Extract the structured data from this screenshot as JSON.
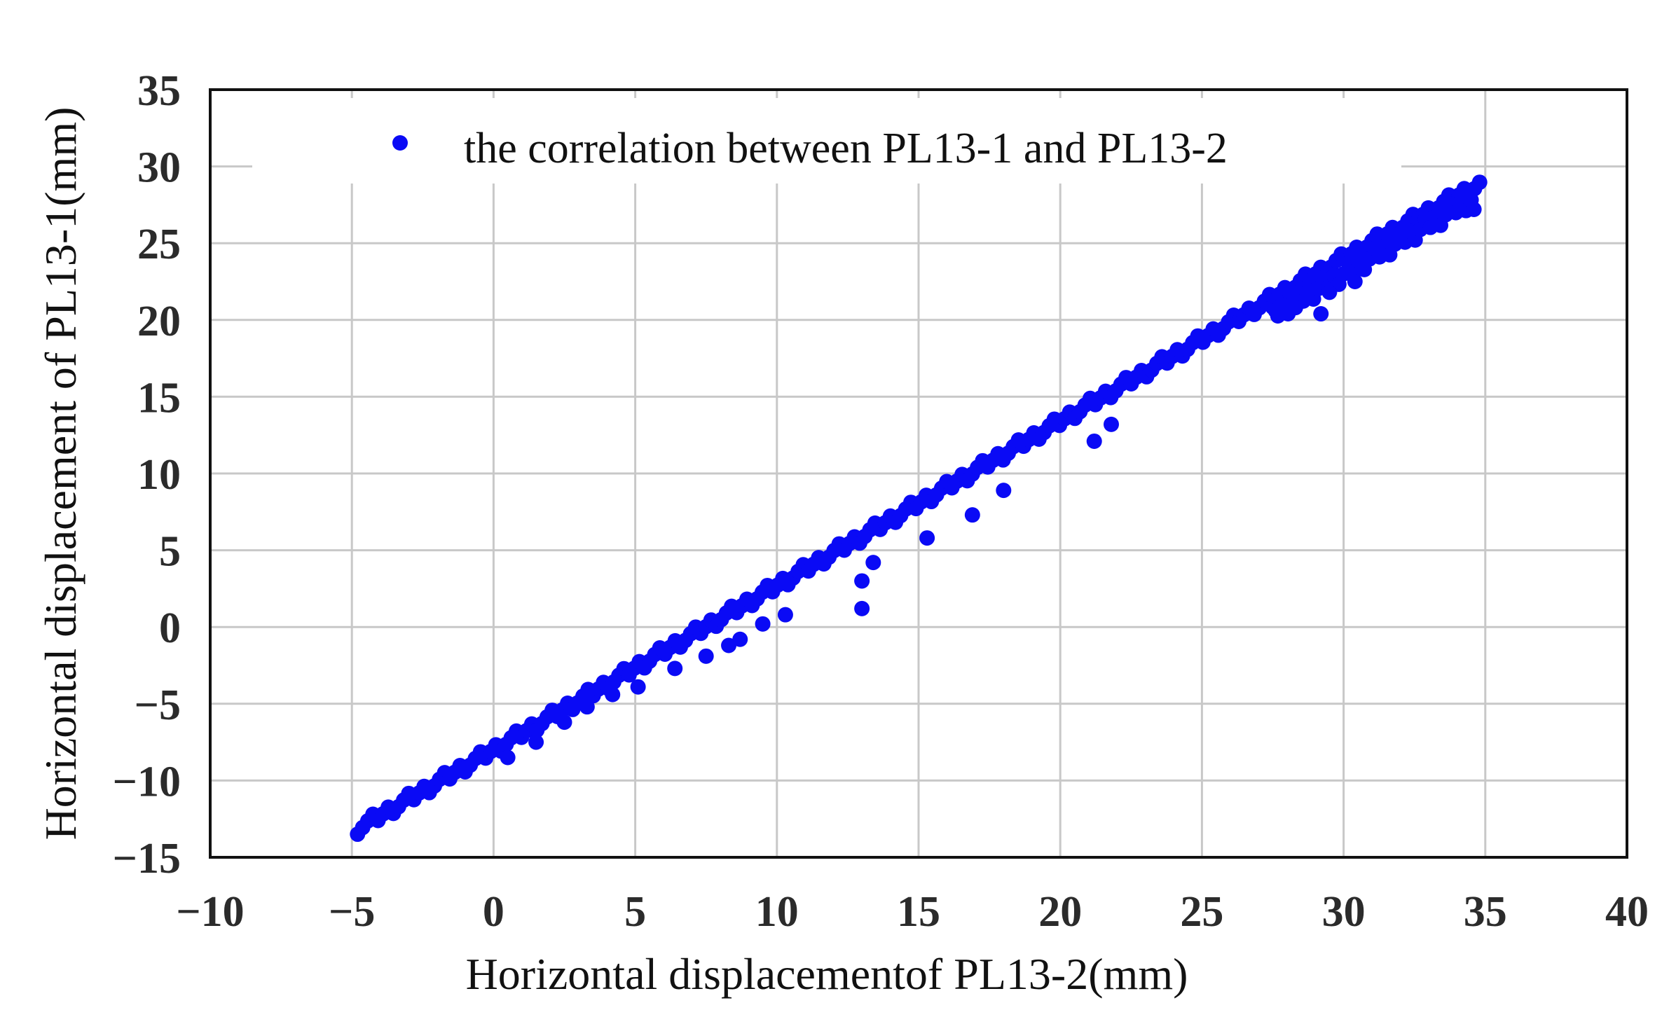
{
  "colors": {
    "points": "#0a0af5",
    "grid": "#c8c8c8",
    "frame": "#111111"
  },
  "chart_data": {
    "type": "scatter",
    "xlabel": "Horizontal displacementof PL13-2(mm)",
    "ylabel": "Horizontal displacement of PL13-1(mm)",
    "xlim": [
      -10,
      40
    ],
    "ylim": [
      -15,
      35
    ],
    "xticks": [
      -10,
      -5,
      0,
      5,
      10,
      15,
      20,
      25,
      30,
      35,
      40
    ],
    "yticks": [
      -15,
      -10,
      -5,
      0,
      5,
      10,
      15,
      20,
      25,
      30,
      35
    ],
    "xtick_labels": [
      "−10",
      "−5",
      "0",
      "5",
      "10",
      "15",
      "20",
      "25",
      "30",
      "35",
      "40"
    ],
    "ytick_labels": [
      "−15",
      "−10",
      "−5",
      "0",
      "5",
      "10",
      "15",
      "20",
      "25",
      "30",
      "35"
    ],
    "grid": true,
    "legend": {
      "position": "top",
      "entries": [
        "the correlation between PL13-1 and PL13-2"
      ]
    },
    "series": [
      {
        "name": "the correlation between PL13-1 and PL13-2",
        "trend": {
          "x0": -4.8,
          "x1": 34.8,
          "y_intercept": -8.0,
          "slope": 1.07
        },
        "main_points": 220,
        "outliers": [
          [
            -1.0,
            -9.2
          ],
          [
            0.5,
            -8.5
          ],
          [
            1.5,
            -7.5
          ],
          [
            2.5,
            -6.2
          ],
          [
            3.3,
            -5.2
          ],
          [
            4.2,
            -4.4
          ],
          [
            5.1,
            -3.9
          ],
          [
            6.4,
            -2.7
          ],
          [
            7.5,
            -1.9
          ],
          [
            8.3,
            -1.2
          ],
          [
            8.7,
            -0.8
          ],
          [
            9.5,
            0.2
          ],
          [
            10.3,
            0.8
          ],
          [
            13.0,
            1.2
          ],
          [
            13.0,
            3.0
          ],
          [
            13.4,
            4.2
          ],
          [
            15.3,
            5.8
          ],
          [
            16.9,
            7.3
          ],
          [
            18.0,
            8.9
          ],
          [
            21.2,
            12.1
          ],
          [
            21.8,
            13.2
          ],
          [
            27.6,
            20.6
          ],
          [
            28.3,
            20.8
          ],
          [
            29.2,
            20.4
          ],
          [
            30.4,
            22.5
          ],
          [
            29.5,
            21.8
          ],
          [
            34.6,
            27.2
          ]
        ]
      }
    ]
  }
}
